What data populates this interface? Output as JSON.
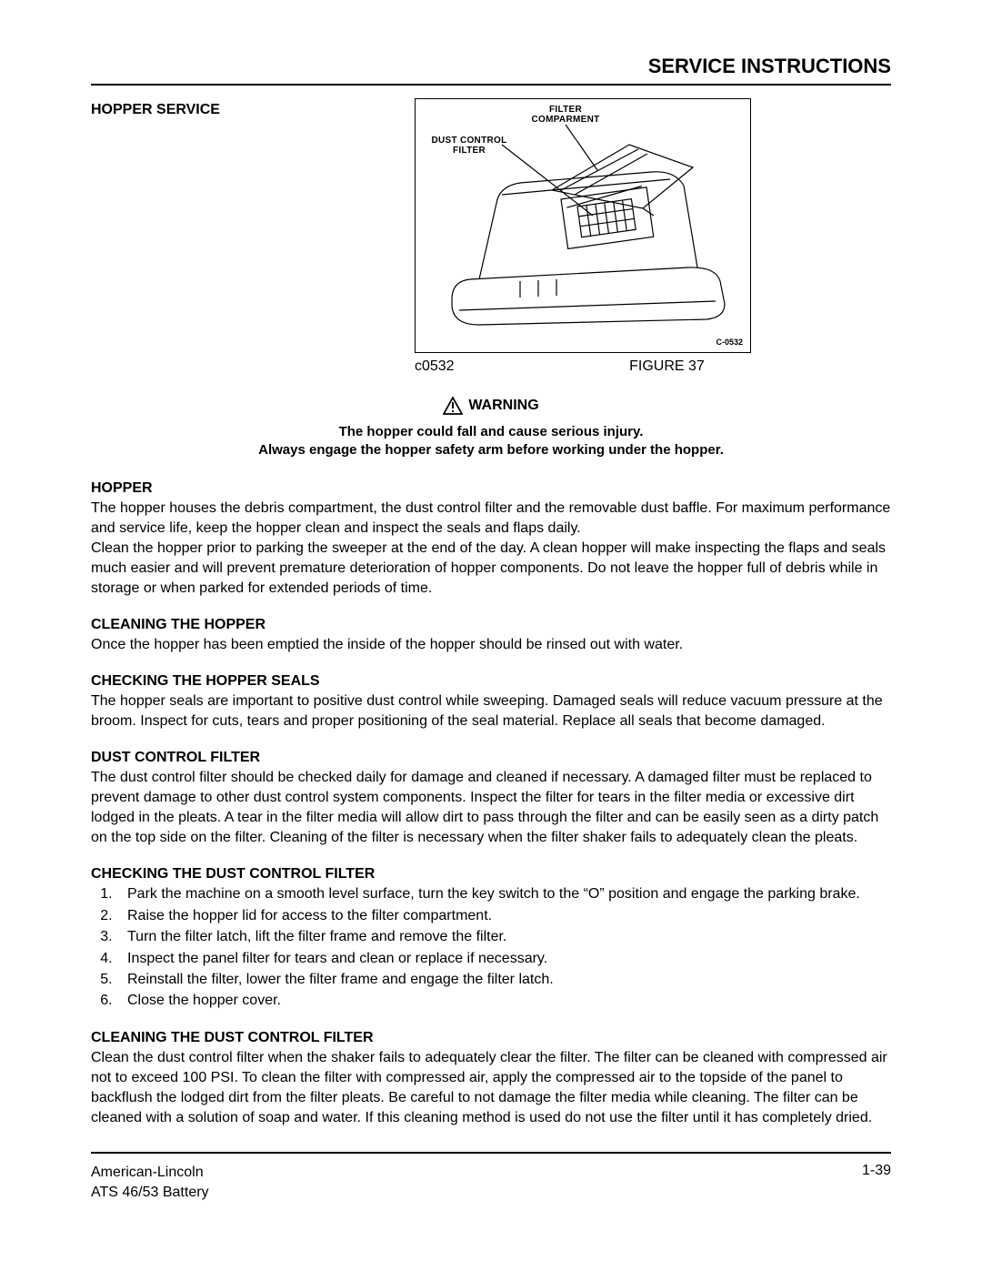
{
  "header": {
    "title": "SERVICE INSTRUCTIONS"
  },
  "figure": {
    "section_title": "HOPPER SERVICE",
    "label_filter_compartment_l1": "FILTER",
    "label_filter_compartment_l2": "COMPARMENT",
    "label_dust_control_l1": "DUST CONTROL",
    "label_dust_control_l2": "FILTER",
    "cnum": "C-0532",
    "caption_code": "c0532",
    "caption_name": "FIGURE 37",
    "border_color": "#000000",
    "background_color": "#ffffff",
    "diagram_stroke": "#000000"
  },
  "warning": {
    "heading": "WARNING",
    "line1": "The hopper could fall and cause serious injury.",
    "line2": "Always engage the hopper safety arm before working under the hopper.",
    "icon_stroke": "#000000"
  },
  "sections": {
    "hopper": {
      "title": "HOPPER",
      "text": "The hopper houses the debris compartment, the dust control filter and the removable dust baffle. For maximum performance and service life, keep the hopper clean and inspect the seals and flaps daily.\nClean the hopper prior to parking the sweeper at the end of the day.  A clean hopper will make inspecting the flaps and seals much easier and will prevent premature deterioration of hopper components. Do not leave the hopper full of debris while in storage or when parked for extended periods of time."
    },
    "cleaning_hopper": {
      "title": "CLEANING THE HOPPER",
      "text": "Once the hopper has been emptied the inside of the hopper should be rinsed out with water."
    },
    "seals": {
      "title": "CHECKING THE HOPPER SEALS",
      "text": "The hopper seals are important to positive dust control while sweeping. Damaged seals will reduce vacuum pressure at the broom. Inspect for cuts, tears and proper positioning of the seal material. Replace all seals that become damaged."
    },
    "dust_filter": {
      "title": "DUST CONTROL FILTER",
      "text": "The dust control filter should be checked daily for damage and cleaned if necessary. A damaged filter must be replaced to prevent damage to other dust control system components. Inspect the filter for tears in the filter media or excessive dirt lodged in the pleats. A tear in the filter media will allow dirt to pass through the filter and can be easily seen as a dirty patch on the top side on the filter. Cleaning of the filter is necessary when the filter shaker fails to adequately clean the pleats."
    },
    "check_filter": {
      "title": "CHECKING THE DUST CONTROL FILTER",
      "items": [
        "Park the machine on a smooth level surface, turn the key switch to the “O” position and engage the parking brake.",
        "Raise the hopper lid for access to the filter compartment.",
        "Turn the filter latch, lift the filter frame and remove the filter.",
        "Inspect the panel filter for tears and clean or replace if necessary.",
        "Reinstall the filter, lower the filter frame and engage the filter latch.",
        "Close the hopper cover."
      ]
    },
    "clean_filter": {
      "title": "CLEANING THE DUST CONTROL FILTER",
      "text": "Clean the dust control filter when the shaker fails to adequately clear the filter. The filter can be cleaned with compressed air not to exceed 100 PSI.  To clean the filter with compressed air, apply the compressed air to the topside of the panel to backflush the lodged dirt from the filter pleats. Be careful to not damage the filter media while cleaning.  The filter can be cleaned with a solution of soap and water. If this cleaning method is used do not use the filter until it has completely dried."
    }
  },
  "footer": {
    "brand": "American-Lincoln",
    "model": "ATS 46/53 Battery",
    "page": "1-39"
  },
  "colors": {
    "text": "#000000",
    "rule": "#000000",
    "background": "#ffffff"
  },
  "typography": {
    "body_fontsize": 16,
    "heading_fontsize": 16,
    "header_title_fontsize": 22,
    "font_family": "Arial, Helvetica, sans-serif"
  }
}
